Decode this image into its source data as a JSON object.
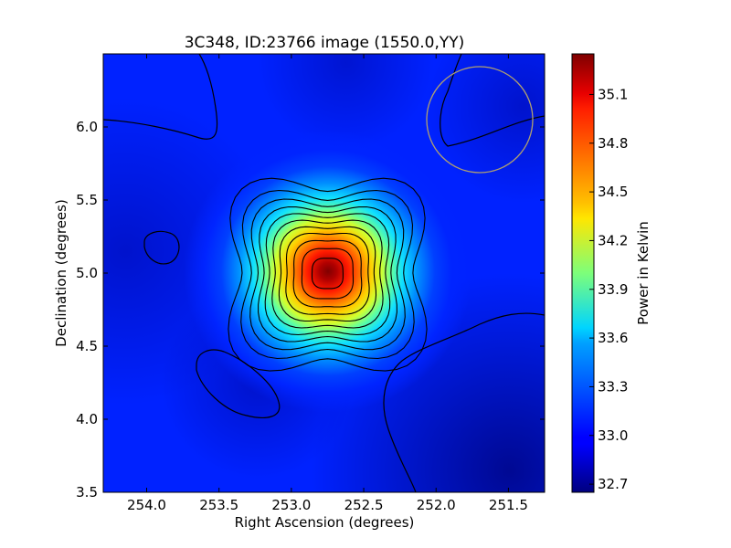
{
  "chart_data": {
    "type": "heatmap",
    "title": "3C348, ID:23766 image (1550.0,YY)",
    "xlabel": "Right Ascension (degrees)",
    "ylabel": "Declination (degrees)",
    "xlim": [
      254.3,
      251.25
    ],
    "ylim": [
      3.5,
      6.5
    ],
    "x_inverted": true,
    "xticks": [
      "254.0",
      "253.5",
      "253.0",
      "252.5",
      "252.0",
      "251.5"
    ],
    "yticks": [
      "3.5",
      "4.0",
      "4.5",
      "5.0",
      "5.5",
      "6.0"
    ],
    "colorbar": {
      "label": "Power in Kelvin",
      "range": [
        32.65,
        35.35
      ],
      "ticks": [
        "32.7",
        "33.0",
        "33.3",
        "33.6",
        "33.9",
        "34.2",
        "34.5",
        "34.8",
        "35.1"
      ],
      "colormap": "jet"
    },
    "source": {
      "name": "3C348",
      "peak_ra": 252.75,
      "peak_dec": 5.0,
      "peak_kelvin": 35.25,
      "background_kelvin": 32.9
    },
    "beam_circle": {
      "ra": 251.7,
      "dec": 6.05,
      "color": "#b0a070"
    },
    "contours": "black"
  }
}
